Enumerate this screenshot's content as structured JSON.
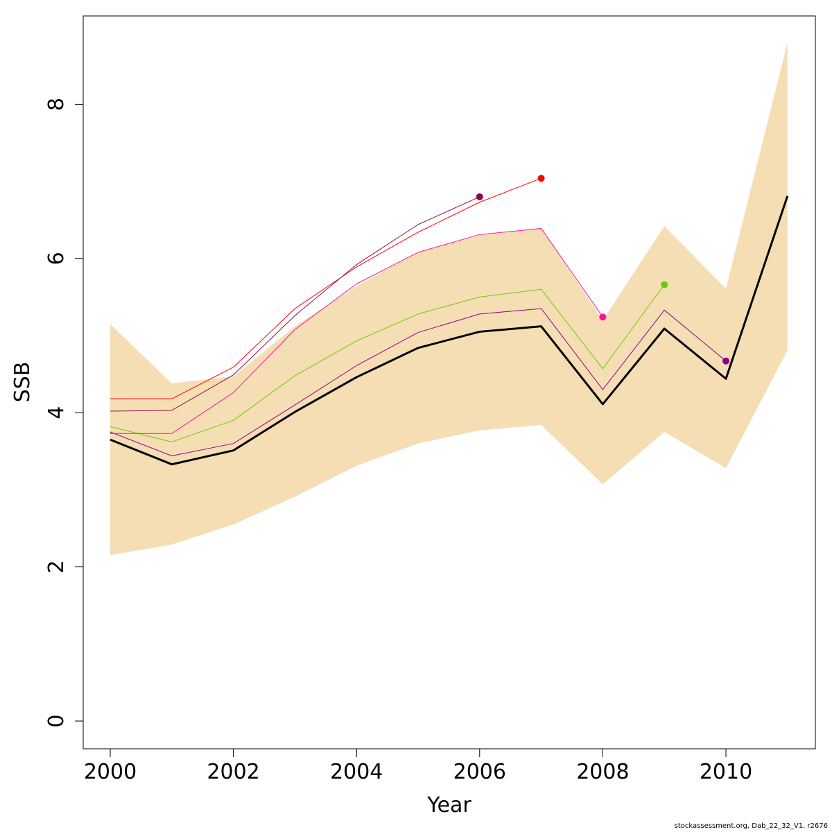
{
  "chart_data": {
    "type": "line",
    "xlabel": "Year",
    "ylabel": "SSB",
    "xlim": [
      2000,
      2011
    ],
    "ylim": [
      0,
      8.8
    ],
    "x_ticks": [
      "2000",
      "2002",
      "2004",
      "2006",
      "2008",
      "2010"
    ],
    "y_ticks": [
      "0",
      "2",
      "4",
      "6",
      "8"
    ],
    "grid": false,
    "legend": "none",
    "confidence_band": {
      "color": "#f5deb3",
      "x": [
        2000,
        2001,
        2002,
        2003,
        2004,
        2005,
        2006,
        2007,
        2008,
        2009,
        2010,
        2011
      ],
      "lower": [
        2.15,
        2.29,
        2.55,
        2.91,
        3.31,
        3.6,
        3.77,
        3.84,
        3.07,
        3.75,
        3.28,
        4.81
      ],
      "upper": [
        5.15,
        4.38,
        4.47,
        5.12,
        5.64,
        6.08,
        6.3,
        6.39,
        5.2,
        6.42,
        5.61,
        8.8
      ]
    },
    "series": [
      {
        "color": "#000000",
        "x": [
          2000,
          2001,
          2002,
          2003,
          2004,
          2005,
          2006,
          2007,
          2008,
          2009,
          2010,
          2011
        ],
        "values": [
          3.65,
          3.33,
          3.51,
          4.01,
          4.46,
          4.84,
          5.05,
          5.12,
          4.11,
          5.09,
          4.44,
          6.81
        ],
        "end_point": false
      },
      {
        "color": "#8b008b",
        "x": [
          2000,
          2001,
          2002,
          2003,
          2004,
          2005,
          2006,
          2007,
          2008,
          2009,
          2010
        ],
        "values": [
          3.75,
          3.44,
          3.6,
          4.1,
          4.61,
          5.04,
          5.28,
          5.35,
          4.3,
          5.33,
          4.67
        ],
        "end_point": true
      },
      {
        "color": "#66cd00",
        "x": [
          2000,
          2001,
          2002,
          2003,
          2004,
          2005,
          2006,
          2007,
          2008,
          2009
        ],
        "values": [
          3.82,
          3.62,
          3.9,
          4.48,
          4.93,
          5.28,
          5.5,
          5.6,
          4.57,
          5.66
        ],
        "end_point": true
      },
      {
        "color": "#ff1493",
        "x": [
          2000,
          2001,
          2002,
          2003,
          2004,
          2005,
          2006,
          2007,
          2008
        ],
        "values": [
          3.73,
          3.73,
          4.26,
          5.08,
          5.67,
          6.08,
          6.31,
          6.39,
          5.24
        ],
        "end_point": true
      },
      {
        "color": "#ff0000",
        "x": [
          2000,
          2001,
          2002,
          2003,
          2004,
          2005,
          2006,
          2007
        ],
        "values": [
          4.18,
          4.18,
          4.59,
          5.35,
          5.89,
          6.34,
          6.73,
          7.04
        ],
        "end_point": true
      },
      {
        "color": "#8b0a50",
        "x": [
          2000,
          2001,
          2002,
          2003,
          2004,
          2005,
          2006
        ],
        "values": [
          4.02,
          4.03,
          4.49,
          5.26,
          5.92,
          6.44,
          6.8
        ],
        "end_point": true
      }
    ]
  },
  "credit": "stockassessment.org, Dab_22_32_V1, r2676"
}
